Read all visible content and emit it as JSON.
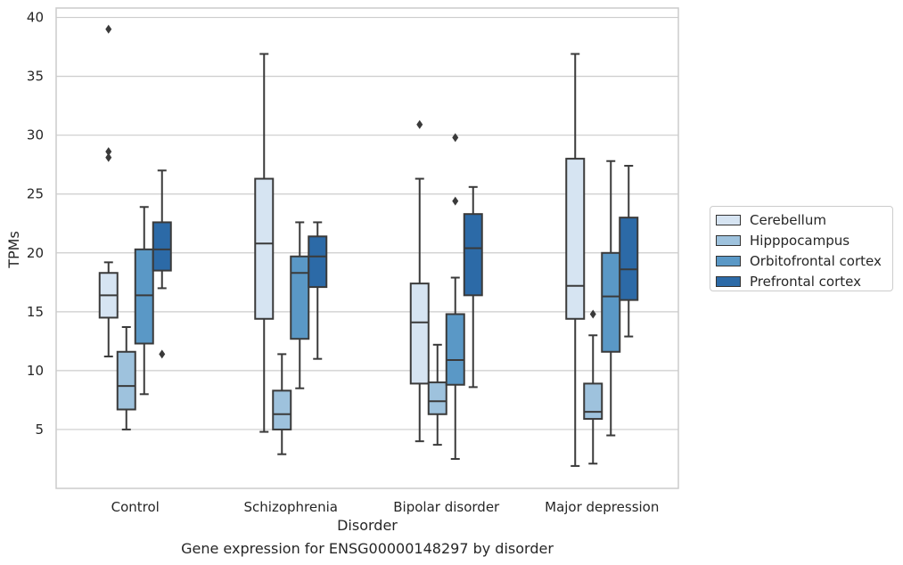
{
  "chart_data": {
    "type": "box",
    "xlabel": "Disorder",
    "ylabel": "TPMs",
    "categories": [
      "Control",
      "Schizophrenia",
      "Bipolar disorder",
      "Major depression"
    ],
    "ylim": [
      0,
      40.8
    ],
    "yticks": [
      5,
      10,
      15,
      20,
      25,
      30,
      35,
      40
    ],
    "grid": "horizontal",
    "legend_position": "right",
    "series": [
      {
        "name": "Cerebellum",
        "color": "#d6e4f2",
        "boxes": [
          {
            "whislo": 11.2,
            "q1": 14.5,
            "med": 16.4,
            "q3": 18.3,
            "whishi": 19.2,
            "fliers": [
              28.1,
              28.6,
              39.0
            ]
          },
          {
            "whislo": 4.8,
            "q1": 14.4,
            "med": 20.8,
            "q3": 26.3,
            "whishi": 36.9,
            "fliers": []
          },
          {
            "whislo": 4.0,
            "q1": 8.9,
            "med": 14.1,
            "q3": 17.4,
            "whishi": 26.3,
            "fliers": [
              30.9
            ]
          },
          {
            "whislo": 1.9,
            "q1": 14.4,
            "med": 17.2,
            "q3": 28.0,
            "whishi": 36.9,
            "fliers": []
          }
        ]
      },
      {
        "name": "Hipppocampus",
        "color": "#9ec2dd",
        "boxes": [
          {
            "whislo": 5.0,
            "q1": 6.7,
            "med": 8.7,
            "q3": 11.6,
            "whishi": 13.7,
            "fliers": []
          },
          {
            "whislo": 2.9,
            "q1": 5.0,
            "med": 6.3,
            "q3": 8.3,
            "whishi": 11.4,
            "fliers": []
          },
          {
            "whislo": 3.7,
            "q1": 6.3,
            "med": 7.4,
            "q3": 9.0,
            "whishi": 12.2,
            "fliers": []
          },
          {
            "whislo": 2.1,
            "q1": 5.9,
            "med": 6.5,
            "q3": 8.9,
            "whishi": 13.0,
            "fliers": [
              14.8
            ]
          }
        ]
      },
      {
        "name": "Orbitofrontal cortex",
        "color": "#5a98c6",
        "boxes": [
          {
            "whislo": 8.0,
            "q1": 12.3,
            "med": 16.4,
            "q3": 20.3,
            "whishi": 23.9,
            "fliers": []
          },
          {
            "whislo": 8.5,
            "q1": 12.7,
            "med": 18.3,
            "q3": 19.7,
            "whishi": 22.6,
            "fliers": []
          },
          {
            "whislo": 2.5,
            "q1": 8.8,
            "med": 10.9,
            "q3": 14.8,
            "whishi": 17.9,
            "fliers": [
              24.4,
              29.8
            ]
          },
          {
            "whislo": 4.5,
            "q1": 11.6,
            "med": 16.3,
            "q3": 20.0,
            "whishi": 27.8,
            "fliers": []
          }
        ]
      },
      {
        "name": "Prefrontal cortex",
        "color": "#2c6aa7",
        "boxes": [
          {
            "whislo": 17.0,
            "q1": 18.5,
            "med": 20.3,
            "q3": 22.6,
            "whishi": 27.0,
            "fliers": [
              11.4
            ]
          },
          {
            "whislo": 11.0,
            "q1": 17.1,
            "med": 19.7,
            "q3": 21.4,
            "whishi": 22.6,
            "fliers": []
          },
          {
            "whislo": 8.6,
            "q1": 16.4,
            "med": 20.4,
            "q3": 23.3,
            "whishi": 25.6,
            "fliers": []
          },
          {
            "whislo": 12.9,
            "q1": 16.0,
            "med": 18.6,
            "q3": 23.0,
            "whishi": 27.4,
            "fliers": []
          }
        ]
      }
    ],
    "caption": "Gene expression for ENSG00000148297 by disorder"
  }
}
